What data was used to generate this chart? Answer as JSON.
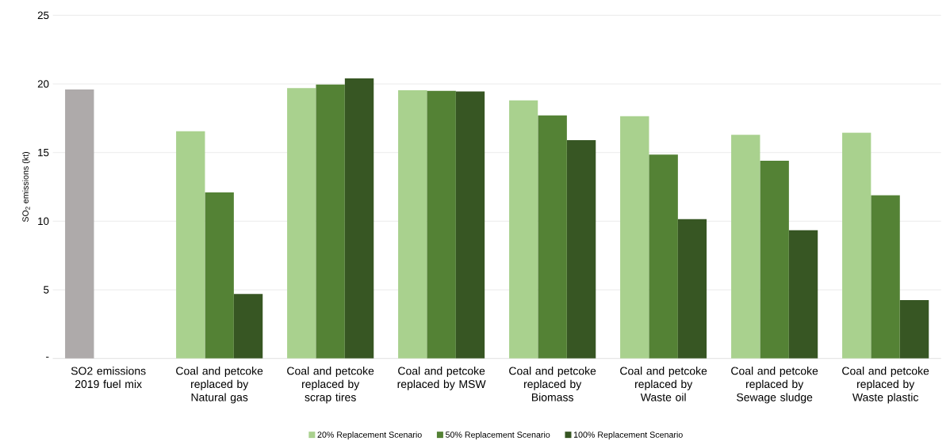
{
  "chart_data": {
    "type": "bar",
    "ylabel": "SO$_{2}$ emissions (kt)",
    "categories": [
      "SO2 emissions 2019 fuel mix",
      "Coal and petcoke replaced by Natural gas",
      "Coal and petcoke replaced by scrap tires",
      "Coal and petcoke replaced by MSW",
      "Coal and petcoke replaced by Biomass",
      "Coal and petcoke replaced by Waste oil",
      "Coal and petcoke replaced by Sewage sludge",
      "Coal and petcoke replaced by Waste plastic"
    ],
    "series": [
      {
        "name": "20% Replacement Scenario",
        "color": "#a9d18e",
        "colors": [
          "#aeaaaa",
          "#a9d18e",
          "#a9d18e",
          "#a9d18e",
          "#a9d18e",
          "#a9d18e",
          "#a9d18e",
          "#a9d18e"
        ],
        "values": [
          19.6,
          16.55,
          19.7,
          19.55,
          18.8,
          17.65,
          16.3,
          16.45
        ]
      },
      {
        "name": "50% Replacement Scenario",
        "color": "#548235",
        "values": [
          null,
          12.1,
          19.95,
          19.5,
          17.7,
          14.85,
          14.4,
          11.9
        ]
      },
      {
        "name": "100% Replacement Scenario",
        "color": "#375623",
        "values": [
          null,
          4.7,
          20.4,
          19.45,
          15.9,
          10.15,
          9.35,
          4.25
        ]
      }
    ],
    "ylim": [
      0,
      25
    ],
    "yticks": [
      {
        "value": 0,
        "label": "-"
      },
      5,
      10,
      15,
      20,
      25
    ],
    "grid": "y",
    "legend": "bottom"
  }
}
